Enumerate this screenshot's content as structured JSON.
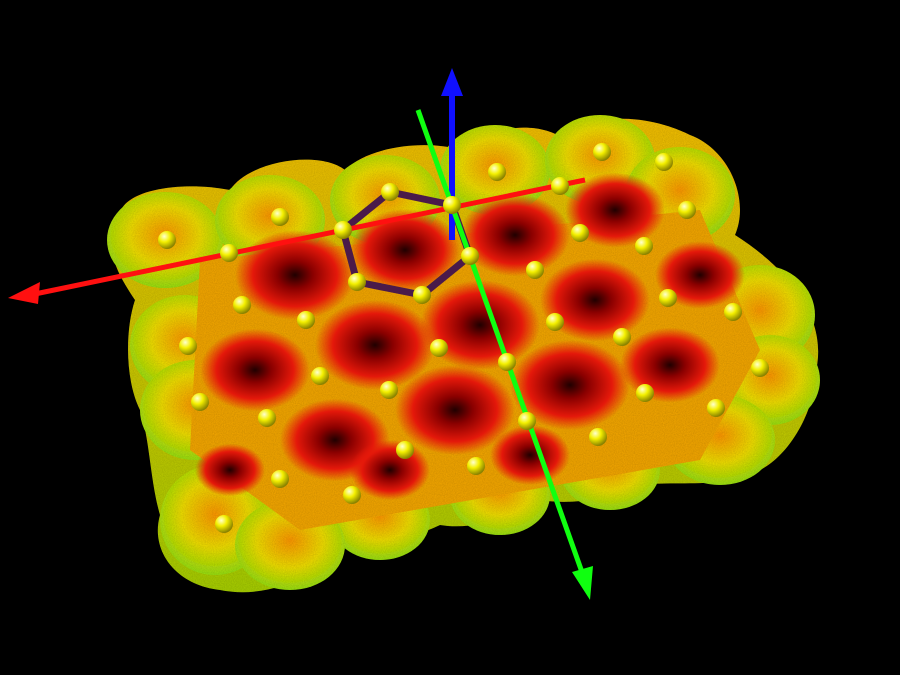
{
  "scene": {
    "background": "#000000",
    "surface": {
      "description_colors": {
        "high": "#7fe01a",
        "mid": "#f6e800",
        "low": "#e8140a",
        "deep": "#7a0000"
      }
    },
    "atoms": {
      "color": "#f4f000",
      "highlight": "#ffffc0"
    },
    "ring_bonds": {
      "color": "#4a1a4a"
    },
    "axes": [
      {
        "name": "x-axis",
        "color": "#ff1010"
      },
      {
        "name": "y-axis",
        "color": "#10ff10"
      },
      {
        "name": "z-axis",
        "color": "#1010ff"
      }
    ]
  }
}
